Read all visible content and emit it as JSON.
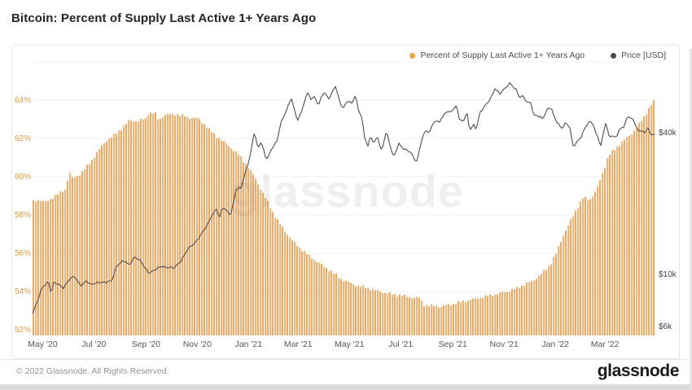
{
  "title": "Bitcoin: Percent of Supply Last Active 1+ Years Ago",
  "watermark": "glassnode",
  "legend": {
    "items": [
      {
        "label": "Percent of Supply Last Active 1+ Years Ago",
        "color": "#F0A24B"
      },
      {
        "label": "Price [USD]",
        "color": "#4a4d50"
      }
    ]
  },
  "footer": {
    "copyright": "© 2022 Glassnode. All Rights Reserved.",
    "brand": "glassnode"
  },
  "chart_data": {
    "type": "combo",
    "title": "Bitcoin: Percent of Supply Last Active 1+ Years Ago",
    "grid": true,
    "legend_position": "top-right",
    "x_axis": {
      "start": "2020-04-19",
      "end": "2022-04-29",
      "ticks": [
        {
          "label": "May '20",
          "date": "2020-05-01"
        },
        {
          "label": "Jul '20",
          "date": "2020-07-01"
        },
        {
          "label": "Sep '20",
          "date": "2020-09-01"
        },
        {
          "label": "Nov '20",
          "date": "2020-11-01"
        },
        {
          "label": "Jan '21",
          "date": "2021-01-01"
        },
        {
          "label": "Mar '21",
          "date": "2021-03-01"
        },
        {
          "label": "May '21",
          "date": "2021-05-01"
        },
        {
          "label": "Jul '21",
          "date": "2021-07-01"
        },
        {
          "label": "Sep '21",
          "date": "2021-09-01"
        },
        {
          "label": "Nov '21",
          "date": "2021-11-01"
        },
        {
          "label": "Jan '22",
          "date": "2022-01-01"
        },
        {
          "label": "Mar '22",
          "date": "2022-03-01"
        }
      ]
    },
    "y_left": {
      "unit": "%",
      "ticks": [
        52,
        54,
        56,
        58,
        60,
        62,
        64
      ],
      "grid_values": [
        52,
        54,
        56,
        58,
        60,
        62,
        64,
        66
      ],
      "min": 51.7,
      "max": 66.3,
      "color": "#DF9C43"
    },
    "y_right": {
      "unit": "USD",
      "scale": "log",
      "ticks": [
        {
          "label": "$40k",
          "value": 40000
        },
        {
          "label": "$10k",
          "value": 10000
        },
        {
          "label": "$6k",
          "value": 6000
        }
      ],
      "color": "#3f4245"
    },
    "series": [
      {
        "name": "Percent of Supply Last Active 1+ Years Ago",
        "type": "bar",
        "axis": "left",
        "color": "#EFA455",
        "points": [
          [
            "2020-04-19",
            58.7
          ],
          [
            "2020-04-26",
            58.8
          ],
          [
            "2020-05-04",
            58.65
          ],
          [
            "2020-05-12",
            58.9
          ],
          [
            "2020-05-20",
            59.1
          ],
          [
            "2020-05-28",
            59.35
          ],
          [
            "2020-06-02",
            60.25
          ],
          [
            "2020-06-05",
            59.9
          ],
          [
            "2020-06-12",
            60.05
          ],
          [
            "2020-06-18",
            60.3
          ],
          [
            "2020-06-27",
            60.75
          ],
          [
            "2020-07-06",
            61.35
          ],
          [
            "2020-07-16",
            61.9
          ],
          [
            "2020-07-26",
            62.2
          ],
          [
            "2020-08-04",
            62.55
          ],
          [
            "2020-08-12",
            62.95
          ],
          [
            "2020-08-22",
            62.9
          ],
          [
            "2020-09-01",
            63.05
          ],
          [
            "2020-09-04",
            63.35
          ],
          [
            "2020-09-12",
            63.3
          ],
          [
            "2020-09-16",
            62.95
          ],
          [
            "2020-09-24",
            63.25
          ],
          [
            "2020-10-08",
            63.25
          ],
          [
            "2020-10-22",
            63.1
          ],
          [
            "2020-11-02",
            63.05
          ],
          [
            "2020-11-10",
            62.7
          ],
          [
            "2020-11-20",
            62.25
          ],
          [
            "2020-11-30",
            61.9
          ],
          [
            "2020-12-10",
            61.55
          ],
          [
            "2020-12-20",
            61.15
          ],
          [
            "2020-12-30",
            60.6
          ],
          [
            "2021-01-08",
            60.0
          ],
          [
            "2021-01-16",
            59.3
          ],
          [
            "2021-01-24",
            58.65
          ],
          [
            "2021-02-01",
            57.95
          ],
          [
            "2021-02-10",
            57.35
          ],
          [
            "2021-02-20",
            56.75
          ],
          [
            "2021-03-02",
            56.3
          ],
          [
            "2021-03-12",
            55.95
          ],
          [
            "2021-03-22",
            55.6
          ],
          [
            "2021-04-01",
            55.3
          ],
          [
            "2021-04-11",
            55.0
          ],
          [
            "2021-04-21",
            54.65
          ],
          [
            "2021-05-01",
            54.45
          ],
          [
            "2021-05-11",
            54.3
          ],
          [
            "2021-05-21",
            54.2
          ],
          [
            "2021-06-01",
            54.05
          ],
          [
            "2021-06-11",
            53.95
          ],
          [
            "2021-06-21",
            53.85
          ],
          [
            "2021-07-01",
            53.8
          ],
          [
            "2021-07-12",
            53.7
          ],
          [
            "2021-07-24",
            53.65
          ],
          [
            "2021-07-28",
            53.3
          ],
          [
            "2021-08-07",
            53.25
          ],
          [
            "2021-08-17",
            53.2
          ],
          [
            "2021-08-27",
            53.3
          ],
          [
            "2021-09-06",
            53.4
          ],
          [
            "2021-09-16",
            53.5
          ],
          [
            "2021-09-26",
            53.6
          ],
          [
            "2021-10-06",
            53.7
          ],
          [
            "2021-10-16",
            53.8
          ],
          [
            "2021-10-26",
            53.9
          ],
          [
            "2021-11-05",
            54.0
          ],
          [
            "2021-11-15",
            54.15
          ],
          [
            "2021-11-25",
            54.35
          ],
          [
            "2021-12-05",
            54.55
          ],
          [
            "2021-12-15",
            54.9
          ],
          [
            "2021-12-25",
            55.35
          ],
          [
            "2022-01-02",
            56.0
          ],
          [
            "2022-01-10",
            56.9
          ],
          [
            "2022-01-18",
            57.6
          ],
          [
            "2022-01-26",
            58.3
          ],
          [
            "2022-02-03",
            58.9
          ],
          [
            "2022-02-11",
            58.8
          ],
          [
            "2022-02-19",
            59.3
          ],
          [
            "2022-02-27",
            60.3
          ],
          [
            "2022-03-05",
            61.1
          ],
          [
            "2022-03-13",
            61.45
          ],
          [
            "2022-03-21",
            61.8
          ],
          [
            "2022-03-29",
            62.1
          ],
          [
            "2022-04-06",
            62.45
          ],
          [
            "2022-04-14",
            62.95
          ],
          [
            "2022-04-22",
            63.55
          ],
          [
            "2022-04-29",
            64.0
          ]
        ]
      },
      {
        "name": "Price [USD]",
        "type": "line",
        "axis": "right",
        "color": "#4e4e4e",
        "points": [
          [
            "2020-04-19",
            6900
          ],
          [
            "2020-04-24",
            7500
          ],
          [
            "2020-04-30",
            8700
          ],
          [
            "2020-05-08",
            9400
          ],
          [
            "2020-05-11",
            8300
          ],
          [
            "2020-05-14",
            9200
          ],
          [
            "2020-05-21",
            9000
          ],
          [
            "2020-05-25",
            8750
          ],
          [
            "2020-06-02",
            9550
          ],
          [
            "2020-06-08",
            9750
          ],
          [
            "2020-06-15",
            9000
          ],
          [
            "2020-06-22",
            9350
          ],
          [
            "2020-06-27",
            9000
          ],
          [
            "2020-07-06",
            9300
          ],
          [
            "2020-07-15",
            9200
          ],
          [
            "2020-07-22",
            9400
          ],
          [
            "2020-07-28",
            10900
          ],
          [
            "2020-08-06",
            11400
          ],
          [
            "2020-08-12",
            11000
          ],
          [
            "2020-08-18",
            11900
          ],
          [
            "2020-08-26",
            11300
          ],
          [
            "2020-09-04",
            10200
          ],
          [
            "2020-09-10",
            10300
          ],
          [
            "2020-09-20",
            10900
          ],
          [
            "2020-09-26",
            10700
          ],
          [
            "2020-10-04",
            10600
          ],
          [
            "2020-10-12",
            11400
          ],
          [
            "2020-10-21",
            12800
          ],
          [
            "2020-10-28",
            13500
          ],
          [
            "2020-11-05",
            14700
          ],
          [
            "2020-11-12",
            15900
          ],
          [
            "2020-11-18",
            17800
          ],
          [
            "2020-11-24",
            19100
          ],
          [
            "2020-11-27",
            17100
          ],
          [
            "2020-12-01",
            19200
          ],
          [
            "2020-12-08",
            18400
          ],
          [
            "2020-12-11",
            18000
          ],
          [
            "2020-12-17",
            22800
          ],
          [
            "2020-12-23",
            23300
          ],
          [
            "2020-12-27",
            26300
          ],
          [
            "2021-01-03",
            32000
          ],
          [
            "2021-01-08",
            40500
          ],
          [
            "2021-01-12",
            34000
          ],
          [
            "2021-01-16",
            37000
          ],
          [
            "2021-01-22",
            30800
          ],
          [
            "2021-01-26",
            32300
          ],
          [
            "2021-01-29",
            34300
          ],
          [
            "2021-02-04",
            37000
          ],
          [
            "2021-02-08",
            44000
          ],
          [
            "2021-02-14",
            48500
          ],
          [
            "2021-02-21",
            56000
          ],
          [
            "2021-02-28",
            45200
          ],
          [
            "2021-03-05",
            48800
          ],
          [
            "2021-03-09",
            54900
          ],
          [
            "2021-03-13",
            59800
          ],
          [
            "2021-03-16",
            55600
          ],
          [
            "2021-03-21",
            57500
          ],
          [
            "2021-03-25",
            51300
          ],
          [
            "2021-03-29",
            57600
          ],
          [
            "2021-04-02",
            59000
          ],
          [
            "2021-04-07",
            56000
          ],
          [
            "2021-04-14",
            63200
          ],
          [
            "2021-04-18",
            56200
          ],
          [
            "2021-04-23",
            50500
          ],
          [
            "2021-04-28",
            54800
          ],
          [
            "2021-05-04",
            53200
          ],
          [
            "2021-05-08",
            57300
          ],
          [
            "2021-05-12",
            49700
          ],
          [
            "2021-05-16",
            46400
          ],
          [
            "2021-05-19",
            38500
          ],
          [
            "2021-05-23",
            34700
          ],
          [
            "2021-05-26",
            38800
          ],
          [
            "2021-05-30",
            35700
          ],
          [
            "2021-06-03",
            39200
          ],
          [
            "2021-06-08",
            33400
          ],
          [
            "2021-06-14",
            40200
          ],
          [
            "2021-06-18",
            35800
          ],
          [
            "2021-06-22",
            31700
          ],
          [
            "2021-06-29",
            35900
          ],
          [
            "2021-07-05",
            33700
          ],
          [
            "2021-07-09",
            33800
          ],
          [
            "2021-07-14",
            32800
          ],
          [
            "2021-07-20",
            29800
          ],
          [
            "2021-07-26",
            37200
          ],
          [
            "2021-07-31",
            41500
          ],
          [
            "2021-08-04",
            39900
          ],
          [
            "2021-08-08",
            43800
          ],
          [
            "2021-08-12",
            44400
          ],
          [
            "2021-08-17",
            44700
          ],
          [
            "2021-08-23",
            49300
          ],
          [
            "2021-08-28",
            48900
          ],
          [
            "2021-09-02",
            49900
          ],
          [
            "2021-09-06",
            52700
          ],
          [
            "2021-09-08",
            46000
          ],
          [
            "2021-09-13",
            44900
          ],
          [
            "2021-09-18",
            48300
          ],
          [
            "2021-09-21",
            40700
          ],
          [
            "2021-09-26",
            43200
          ],
          [
            "2021-09-29",
            41500
          ],
          [
            "2021-10-03",
            48800
          ],
          [
            "2021-10-08",
            51000
          ],
          [
            "2021-10-14",
            54500
          ],
          [
            "2021-10-18",
            58000
          ],
          [
            "2021-10-21",
            62000
          ],
          [
            "2021-10-27",
            58400
          ],
          [
            "2021-11-02",
            61500
          ],
          [
            "2021-11-08",
            65500
          ],
          [
            "2021-11-12",
            62900
          ],
          [
            "2021-11-16",
            60100
          ],
          [
            "2021-11-19",
            56400
          ],
          [
            "2021-11-24",
            57200
          ],
          [
            "2021-11-28",
            54300
          ],
          [
            "2021-12-03",
            53600
          ],
          [
            "2021-12-06",
            47200
          ],
          [
            "2021-12-11",
            47100
          ],
          [
            "2021-12-17",
            46200
          ],
          [
            "2021-12-23",
            50800
          ],
          [
            "2021-12-27",
            50700
          ],
          [
            "2021-12-31",
            46200
          ],
          [
            "2022-01-05",
            43500
          ],
          [
            "2022-01-09",
            41900
          ],
          [
            "2022-01-13",
            43900
          ],
          [
            "2022-01-18",
            42200
          ],
          [
            "2022-01-22",
            35100
          ],
          [
            "2022-01-27",
            36800
          ],
          [
            "2022-02-01",
            38500
          ],
          [
            "2022-02-05",
            41500
          ],
          [
            "2022-02-10",
            44600
          ],
          [
            "2022-02-15",
            44000
          ],
          [
            "2022-02-18",
            40000
          ],
          [
            "2022-02-22",
            37000
          ],
          [
            "2022-02-24",
            34900
          ],
          [
            "2022-03-02",
            44400
          ],
          [
            "2022-03-06",
            38600
          ],
          [
            "2022-03-10",
            39000
          ],
          [
            "2022-03-14",
            37800
          ],
          [
            "2022-03-18",
            41000
          ],
          [
            "2022-03-23",
            42400
          ],
          [
            "2022-03-28",
            47100
          ],
          [
            "2022-04-02",
            45900
          ],
          [
            "2022-04-06",
            43200
          ],
          [
            "2022-04-11",
            40100
          ],
          [
            "2022-04-14",
            41500
          ],
          [
            "2022-04-18",
            39700
          ],
          [
            "2022-04-21",
            42300
          ],
          [
            "2022-04-25",
            38600
          ],
          [
            "2022-04-29",
            39600
          ]
        ]
      }
    ]
  }
}
